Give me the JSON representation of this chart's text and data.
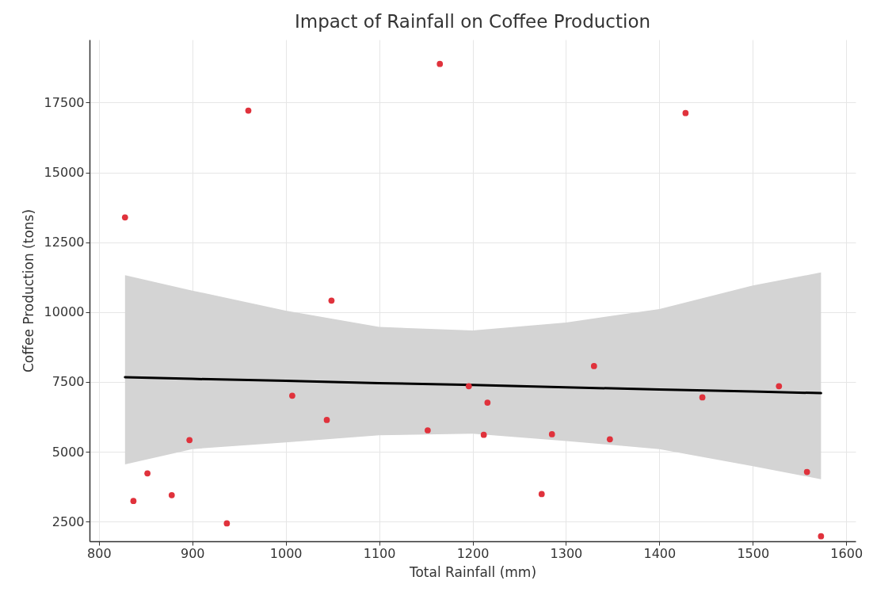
{
  "chart_data": {
    "type": "scatter",
    "title": "Impact of Rainfall on Coffee Production",
    "xlabel": "Total Rainfall (mm)",
    "ylabel": "Coffee Production (tons)",
    "xlim": [
      790,
      1610
    ],
    "ylim": [
      1800,
      19750
    ],
    "xticks": [
      800,
      900,
      1000,
      1100,
      1200,
      1300,
      1400,
      1500,
      1600
    ],
    "yticks": [
      2500,
      5000,
      7500,
      10000,
      12500,
      15000,
      17500
    ],
    "grid": true,
    "series": [
      {
        "type": "scatter",
        "marker": "circle",
        "color": "#e0323c",
        "x": [
          828,
          960,
          1049,
          1007,
          1044,
          897,
          852,
          837,
          878,
          937,
          1152,
          1196,
          1165,
          1428,
          1216,
          1212,
          1285,
          1274,
          1330,
          1347,
          1446,
          1528,
          1558,
          1573
        ],
        "values": [
          13390,
          17210,
          10410,
          7010,
          6140,
          5420,
          4230,
          3240,
          3450,
          2440,
          5770,
          7350,
          18880,
          17120,
          6760,
          5610,
          5630,
          3490,
          8070,
          5450,
          6950,
          7350,
          4280,
          1980
        ]
      },
      {
        "type": "line",
        "marker": "none",
        "color": "#000000",
        "x": [
          828,
          900,
          1000,
          1100,
          1200,
          1300,
          1400,
          1500,
          1573
        ],
        "values": [
          7670,
          7610,
          7540,
          7460,
          7390,
          7310,
          7230,
          7160,
          7100
        ],
        "lower": [
          4550,
          5100,
          5340,
          5590,
          5650,
          5390,
          5100,
          4490,
          4020
        ],
        "upper": [
          11320,
          10770,
          10050,
          9470,
          9340,
          9630,
          10110,
          10950,
          11420
        ]
      }
    ]
  }
}
